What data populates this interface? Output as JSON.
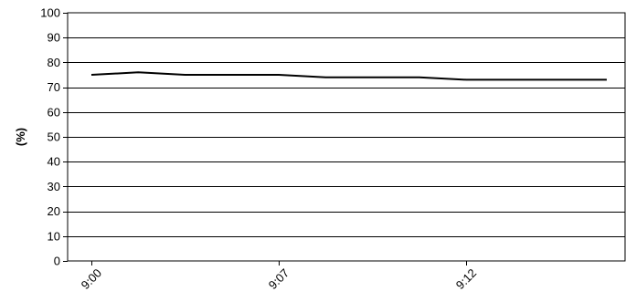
{
  "chart_data": {
    "type": "line",
    "title": "",
    "xlabel": "",
    "ylabel": "(%)",
    "ylim": [
      0,
      100
    ],
    "y_ticks": [
      0,
      10,
      20,
      30,
      40,
      50,
      60,
      70,
      80,
      90,
      100
    ],
    "x_tick_labels": [
      {
        "label": "9:00",
        "index": 0
      },
      {
        "label": "9:07",
        "index": 4
      },
      {
        "label": "9:12",
        "index": 8
      }
    ],
    "grid": true,
    "legend": "none",
    "series": [
      {
        "color": "#000000",
        "values": [
          75,
          76,
          75,
          75,
          75,
          74,
          74,
          74,
          73,
          73,
          73,
          73
        ]
      }
    ]
  }
}
